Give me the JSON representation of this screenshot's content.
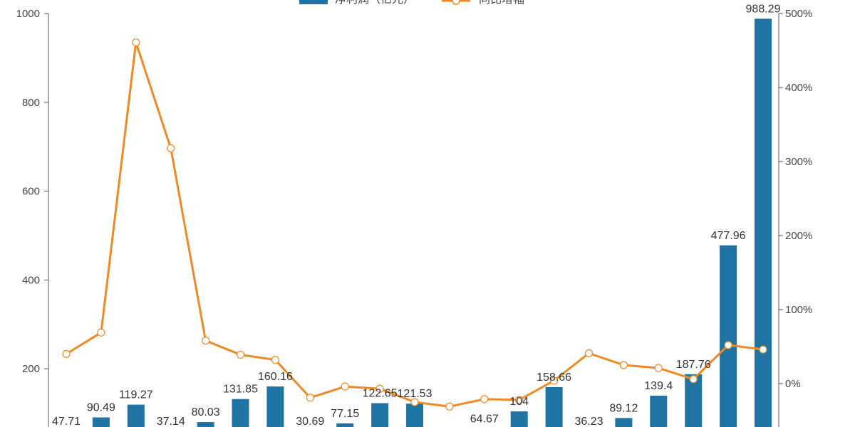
{
  "chart_data": {
    "type": "bar+line",
    "legend": {
      "position": "top",
      "bar_series": "净利润（亿元）",
      "line_series": "同比增幅"
    },
    "colors": {
      "bar": "#1f74a3",
      "line": "#ee8a24",
      "marker_fill": "#ffffff"
    },
    "left_axis": {
      "ylim": [
        0,
        1000
      ],
      "ticks": [
        "200",
        "400",
        "600",
        "800",
        "1000"
      ]
    },
    "right_axis": {
      "ylim": [
        -100,
        500
      ],
      "unit": "%",
      "ticks": [
        "0%",
        "100%",
        "200%",
        "300%",
        "400%",
        "500%"
      ]
    },
    "grid": false,
    "series": [
      {
        "name": "净利润（亿元）",
        "kind": "bar",
        "values": [
          47.71,
          90.49,
          119.27,
          37.14,
          80.03,
          131.85,
          160.16,
          30.69,
          77.15,
          122.65,
          121.53,
          null,
          64.67,
          104,
          158.66,
          36.23,
          89.12,
          139.4,
          187.76,
          477.96,
          988.29
        ],
        "labels": [
          "47.71",
          "90.49",
          "119.27",
          "37.14",
          "80.03",
          "131.85",
          "160.16",
          "30.69",
          "77.15",
          "122.65",
          "121.53",
          "",
          "64.67",
          "104",
          "158.66",
          "36.23",
          "89.12",
          "139.4",
          "187.76",
          "477.96",
          "988.29"
        ]
      },
      {
        "name": "同比增幅",
        "kind": "line",
        "unit": "%",
        "values": [
          40,
          69,
          461,
          318,
          58,
          39,
          32,
          -19,
          -4,
          -7,
          -25,
          -31,
          -21,
          -22,
          4,
          41,
          25,
          21,
          6,
          52,
          46
        ]
      }
    ]
  }
}
